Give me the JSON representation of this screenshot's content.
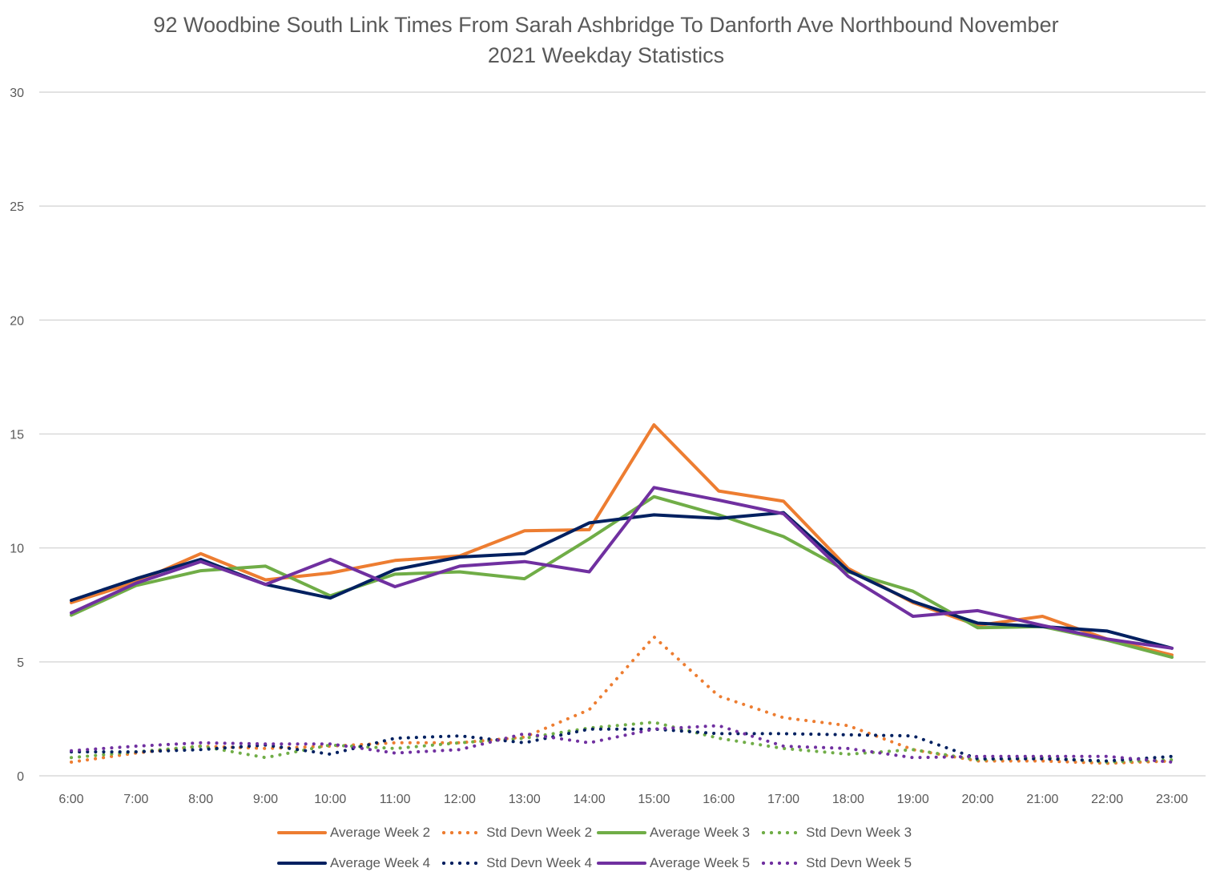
{
  "chart_data": {
    "type": "line",
    "title": "92 Woodbine South Link Times From Sarah Ashbridge To Danforth Ave Northbound November 2021 Weekday Statistics",
    "title_lines": [
      "92 Woodbine South Link Times From Sarah Ashbridge To Danforth Ave Northbound November",
      "2021 Weekday Statistics"
    ],
    "xlabel": "",
    "ylabel": "",
    "ylim": [
      0,
      30
    ],
    "yticks": [
      0,
      5,
      10,
      15,
      20,
      25,
      30
    ],
    "grid": true,
    "legend_position": "bottom",
    "categories": [
      "6:00",
      "7:00",
      "8:00",
      "9:00",
      "10:00",
      "11:00",
      "12:00",
      "13:00",
      "14:00",
      "15:00",
      "16:00",
      "17:00",
      "18:00",
      "19:00",
      "20:00",
      "21:00",
      "22:00",
      "23:00"
    ],
    "series": [
      {
        "name": "Average Week 2",
        "style": "solid",
        "color": "#ED7D31",
        "values": [
          7.6,
          8.5,
          9.75,
          8.6,
          8.9,
          9.45,
          9.65,
          10.75,
          10.8,
          15.4,
          12.5,
          12.05,
          9.1,
          7.6,
          6.6,
          7.0,
          6.0,
          5.3
        ]
      },
      {
        "name": "Std Devn Week 2",
        "style": "dotted",
        "color": "#ED7D31",
        "values": [
          0.6,
          1.0,
          1.3,
          1.2,
          1.3,
          1.45,
          1.45,
          1.7,
          2.9,
          6.1,
          3.5,
          2.55,
          2.2,
          1.15,
          0.65,
          0.65,
          0.55,
          0.65
        ]
      },
      {
        "name": "Average Week 3",
        "style": "solid",
        "color": "#70AD47",
        "values": [
          7.05,
          8.35,
          9.0,
          9.2,
          7.9,
          8.85,
          8.95,
          8.65,
          10.4,
          12.25,
          11.45,
          10.5,
          8.95,
          8.1,
          6.5,
          6.55,
          5.95,
          5.2
        ]
      },
      {
        "name": "Std Devn Week 3",
        "style": "dotted",
        "color": "#70AD47",
        "values": [
          0.8,
          1.05,
          1.3,
          0.8,
          1.35,
          1.2,
          1.45,
          1.65,
          2.1,
          2.35,
          1.65,
          1.2,
          0.95,
          1.15,
          0.7,
          0.8,
          0.6,
          0.7
        ]
      },
      {
        "name": "Average Week 4",
        "style": "solid",
        "color": "#002060",
        "values": [
          7.7,
          8.65,
          9.5,
          8.4,
          7.8,
          9.05,
          9.6,
          9.75,
          11.1,
          11.45,
          11.3,
          11.55,
          9.0,
          7.65,
          6.7,
          6.55,
          6.35,
          5.6
        ]
      },
      {
        "name": "Std Devn Week 4",
        "style": "dotted",
        "color": "#002060",
        "values": [
          1.05,
          1.05,
          1.15,
          1.35,
          0.95,
          1.65,
          1.75,
          1.45,
          2.05,
          2.05,
          1.85,
          1.85,
          1.8,
          1.75,
          0.75,
          0.75,
          0.65,
          0.85
        ]
      },
      {
        "name": "Average Week 5",
        "style": "solid",
        "color": "#7030A0",
        "values": [
          7.15,
          8.45,
          9.4,
          8.4,
          9.5,
          8.3,
          9.2,
          9.4,
          8.95,
          12.65,
          12.1,
          11.5,
          8.75,
          7.0,
          7.25,
          6.6,
          6.0,
          5.6
        ]
      },
      {
        "name": "Std Devn Week 5",
        "style": "dotted",
        "color": "#7030A0",
        "values": [
          1.1,
          1.3,
          1.45,
          1.4,
          1.4,
          1.0,
          1.15,
          1.85,
          1.45,
          2.05,
          2.2,
          1.3,
          1.2,
          0.8,
          0.85,
          0.85,
          0.85,
          0.6
        ]
      }
    ]
  },
  "colors": {
    "gridline": "#D9D9D9",
    "text": "#595959"
  }
}
